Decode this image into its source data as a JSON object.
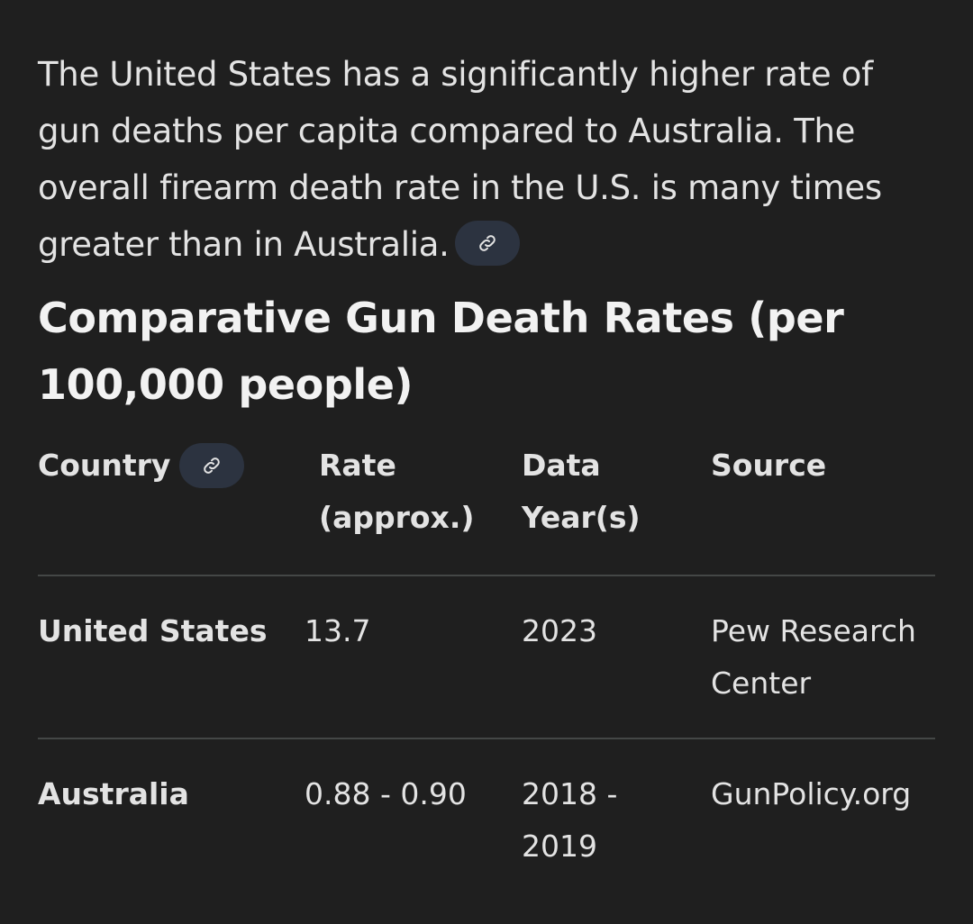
{
  "intro": {
    "text": "The United States has a significantly higher rate of gun deaths per capita compared to Australia. The overall firearm death rate in the U.S. is many times greater than in Australia."
  },
  "section": {
    "title": "Comparative Gun Death Rates (per 100,000 people)"
  },
  "table": {
    "headers": {
      "country": "Country",
      "rate": "Rate (approx.)",
      "year": "Data Year(s)",
      "source": "Source"
    },
    "rows": [
      {
        "country": "United States",
        "rate": "13.7",
        "year": "2023",
        "source": "Pew Research Center"
      },
      {
        "country": "Australia",
        "rate": "0.88 - 0.90",
        "year": "2018 - 2019",
        "source": "GunPolicy.org"
      }
    ]
  },
  "icons": {
    "link": "link-icon"
  },
  "colors": {
    "background": "#1f1f1f",
    "text": "#e3e3e3",
    "chip": "#2c3340",
    "divider": "#444746"
  }
}
